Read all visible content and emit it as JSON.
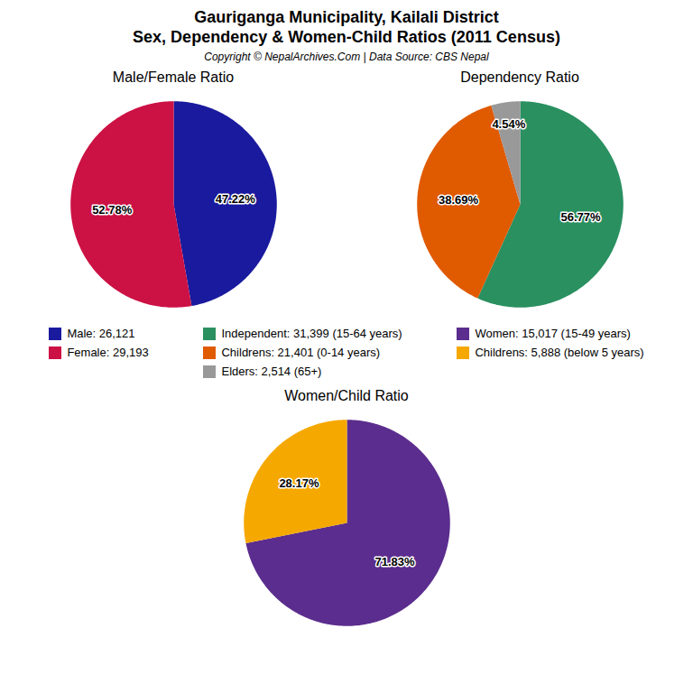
{
  "title": "Gauriganga Municipality, Kailali District",
  "subtitle": "Sex, Dependency & Women-Child Ratios (2011 Census)",
  "annotations": [
    "Copyright © NepalArchives.Com | Data Source: CBS Nepal"
  ],
  "chart_data": [
    {
      "type": "pie",
      "title": "Male/Female Ratio",
      "categories": [
        "Male: 26,121",
        "Female: 29,193"
      ],
      "values": [
        47.22,
        52.78
      ],
      "value_labels": [
        "47.22%",
        "52.78%"
      ],
      "colors": [
        "#1a1a9e",
        "#cc1144"
      ],
      "data_labels": true,
      "legend": "bottom"
    },
    {
      "type": "pie",
      "title": "Dependency Ratio",
      "categories": [
        "Independent: 31,399 (15-64 years)",
        "Childrens: 21,401 (0-14 years)",
        "Elders: 2,514 (65+)"
      ],
      "values": [
        56.77,
        38.69,
        4.54
      ],
      "value_labels": [
        "56.77%",
        "38.69%",
        "4.54%"
      ],
      "colors": [
        "#2a9060",
        "#e05a00",
        "#999999"
      ],
      "data_labels": true,
      "legend": "bottom"
    },
    {
      "type": "pie",
      "title": "Women/Child Ratio",
      "categories": [
        "Women: 15,017 (15-49 years)",
        "Childrens: 5,888 (below 5 years)"
      ],
      "values": [
        71.83,
        28.17
      ],
      "value_labels": [
        "71.83%",
        "28.17%"
      ],
      "colors": [
        "#5b2d8e",
        "#f5a800"
      ],
      "data_labels": true,
      "legend": "top"
    }
  ]
}
